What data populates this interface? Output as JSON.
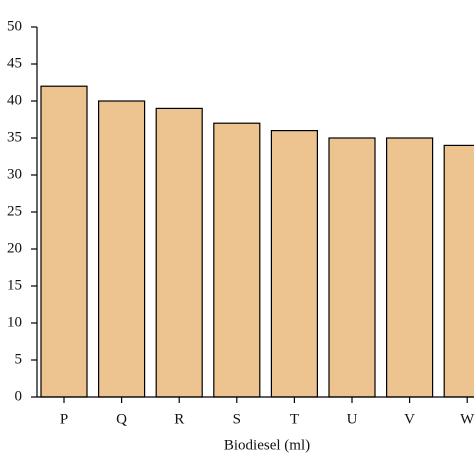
{
  "chart_data": {
    "type": "bar",
    "x_label": "Biodiesel (ml)",
    "categories": [
      "P",
      "Q",
      "R",
      "S",
      "T",
      "U",
      "V",
      "W"
    ],
    "values": [
      42,
      40,
      39,
      37,
      36,
      35,
      35,
      34
    ],
    "color": "#edc48f",
    "ylim": [
      0,
      50
    ],
    "yticks": [
      0,
      5,
      10,
      15,
      20,
      25,
      30,
      35,
      40,
      45,
      50
    ],
    "grid": false
  }
}
